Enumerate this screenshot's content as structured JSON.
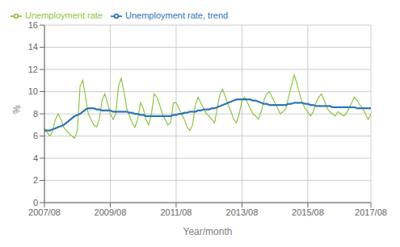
{
  "chart_data": {
    "type": "line",
    "xlabel": "Year/month",
    "ylabel": "%",
    "categories": [
      "2007/08",
      null,
      null,
      null,
      null,
      null,
      null,
      null,
      null,
      null,
      null,
      null,
      null,
      null,
      null,
      null,
      null,
      null,
      null,
      null,
      null,
      null,
      null,
      null,
      "2009/08",
      null,
      null,
      null,
      null,
      null,
      null,
      null,
      null,
      null,
      null,
      null,
      null,
      null,
      null,
      null,
      null,
      null,
      null,
      null,
      null,
      null,
      null,
      null,
      "2011/08",
      null,
      null,
      null,
      null,
      null,
      null,
      null,
      null,
      null,
      null,
      null,
      null,
      null,
      null,
      null,
      null,
      null,
      null,
      null,
      null,
      null,
      null,
      null,
      "2013/08",
      null,
      null,
      null,
      null,
      null,
      null,
      null,
      null,
      null,
      null,
      null,
      null,
      null,
      null,
      null,
      null,
      null,
      null,
      null,
      null,
      null,
      null,
      null,
      "2015/08",
      null,
      null,
      null,
      null,
      null,
      null,
      null,
      null,
      null,
      null,
      null,
      null,
      null,
      null,
      null,
      null,
      null,
      null,
      null,
      null,
      null,
      null,
      "2017/08"
    ],
    "series": [
      {
        "name": "Unemployment rate",
        "color": "#8dc63f",
        "values": [
          6.7,
          6.3,
          6.0,
          6.5,
          7.5,
          8.0,
          7.5,
          6.8,
          6.5,
          6.2,
          6.0,
          5.8,
          6.5,
          10.5,
          11.0,
          9.5,
          8.0,
          7.5,
          7.0,
          6.8,
          7.5,
          9.2,
          9.8,
          9.0,
          8.0,
          7.5,
          8.0,
          10.5,
          11.2,
          10.0,
          8.5,
          7.8,
          7.2,
          6.8,
          7.5,
          9.0,
          8.5,
          7.5,
          7.0,
          8.0,
          9.8,
          9.5,
          8.8,
          8.0,
          7.5,
          7.0,
          7.2,
          9.0,
          9.0,
          8.5,
          8.0,
          7.5,
          6.8,
          6.5,
          7.0,
          8.8,
          9.5,
          9.0,
          8.5,
          8.0,
          7.8,
          7.5,
          7.2,
          8.5,
          9.8,
          10.2,
          9.5,
          8.8,
          8.2,
          7.5,
          7.2,
          8.0,
          9.2,
          9.5,
          9.0,
          8.5,
          8.0,
          7.8,
          7.5,
          8.2,
          9.2,
          9.8,
          10.0,
          9.5,
          9.0,
          8.5,
          8.0,
          8.2,
          8.5,
          9.5,
          10.5,
          11.5,
          10.8,
          9.8,
          9.0,
          8.5,
          8.2,
          7.8,
          8.2,
          9.0,
          9.5,
          9.8,
          9.2,
          8.5,
          8.2,
          8.0,
          7.8,
          8.2,
          8.0,
          7.8,
          8.0,
          8.5,
          9.0,
          9.5,
          9.2,
          8.8,
          8.5,
          8.0,
          7.5,
          8.0
        ]
      },
      {
        "name": "Unemployment rate, trend",
        "color": "#2e75b6",
        "values": [
          6.5,
          6.5,
          6.5,
          6.6,
          6.7,
          6.8,
          6.9,
          7.0,
          7.2,
          7.4,
          7.6,
          7.8,
          7.9,
          8.0,
          8.2,
          8.4,
          8.5,
          8.5,
          8.5,
          8.4,
          8.4,
          8.3,
          8.3,
          8.3,
          8.3,
          8.2,
          8.2,
          8.2,
          8.2,
          8.2,
          8.2,
          8.1,
          8.1,
          8.0,
          8.0,
          7.9,
          7.9,
          7.8,
          7.8,
          7.8,
          7.8,
          7.8,
          7.8,
          7.8,
          7.8,
          7.8,
          7.8,
          7.9,
          7.9,
          8.0,
          8.0,
          8.1,
          8.1,
          8.2,
          8.2,
          8.2,
          8.3,
          8.3,
          8.4,
          8.4,
          8.4,
          8.5,
          8.5,
          8.6,
          8.7,
          8.8,
          8.9,
          9.0,
          9.1,
          9.2,
          9.3,
          9.3,
          9.3,
          9.3,
          9.3,
          9.3,
          9.2,
          9.2,
          9.1,
          9.0,
          8.9,
          8.9,
          8.8,
          8.8,
          8.8,
          8.8,
          8.8,
          8.8,
          8.8,
          8.9,
          8.9,
          9.0,
          9.0,
          9.0,
          9.0,
          8.9,
          8.9,
          8.8,
          8.8,
          8.7,
          8.7,
          8.7,
          8.7,
          8.7,
          8.7,
          8.6,
          8.6,
          8.6,
          8.6,
          8.6,
          8.6,
          8.6,
          8.6,
          8.6,
          8.5,
          8.5,
          8.5,
          8.5,
          8.5,
          8.5
        ]
      }
    ],
    "ylim": [
      0,
      16
    ],
    "yticks": [
      0,
      2,
      4,
      6,
      8,
      10,
      12,
      14,
      16
    ],
    "grid": true,
    "legend": "upper left"
  }
}
